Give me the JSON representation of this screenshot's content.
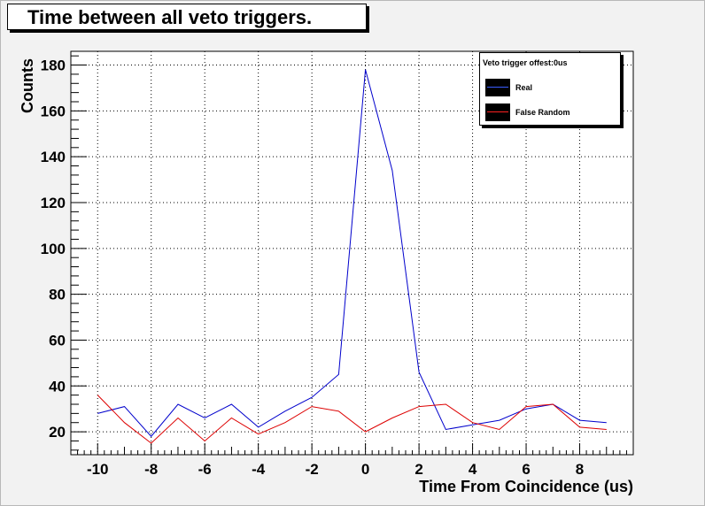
{
  "chart_data": {
    "type": "line",
    "title": "Time between all veto triggers.",
    "xlabel": "Time From Coincidence (us)",
    "ylabel": "Counts",
    "xlim": [
      -11,
      10
    ],
    "ylim": [
      10,
      186
    ],
    "x_ticks": [
      -10,
      -8,
      -6,
      -4,
      -2,
      0,
      2,
      4,
      6,
      8
    ],
    "y_ticks": [
      20,
      40,
      60,
      80,
      100,
      120,
      140,
      160,
      180
    ],
    "grid": true,
    "legend": {
      "position": "top-right",
      "header": "Veto trigger offest:0us"
    },
    "x": [
      -10,
      -9,
      -8,
      -7,
      -6,
      -5,
      -4,
      -3,
      -2,
      -1,
      0,
      1,
      2,
      3,
      4,
      5,
      6,
      7,
      8,
      9
    ],
    "series": [
      {
        "name": "Real",
        "color": "#0000cc",
        "values": [
          28,
          31,
          18,
          32,
          26,
          32,
          22,
          29,
          35,
          45,
          178,
          134,
          46,
          21,
          23,
          25,
          30,
          32,
          25,
          24
        ]
      },
      {
        "name": "False Random",
        "color": "#dd0000",
        "values": [
          36,
          24,
          15,
          26,
          16,
          26,
          19,
          24,
          31,
          29,
          20,
          26,
          31,
          32,
          24,
          21,
          31,
          32,
          22,
          21
        ]
      }
    ]
  }
}
